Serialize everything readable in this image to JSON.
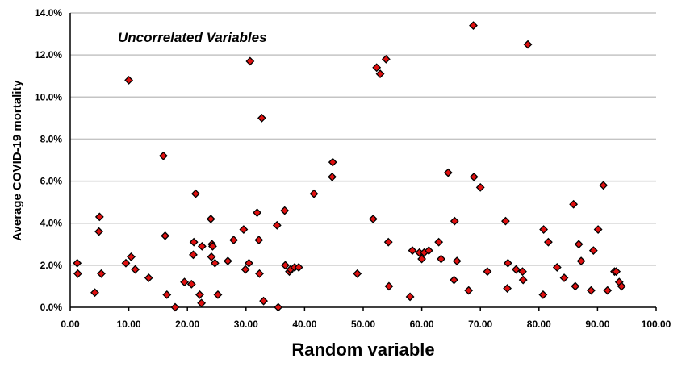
{
  "chart_data": {
    "type": "scatter",
    "title": "",
    "annotation": "Uncorrelated  Variables",
    "xlabel": "Random variable",
    "ylabel": "Average COVID-19 mortality",
    "xlim": [
      0,
      100
    ],
    "ylim": [
      0,
      14
    ],
    "x_ticks": [
      "0.00",
      "10.00",
      "20.00",
      "30.00",
      "40.00",
      "50.00",
      "60.00",
      "70.00",
      "80.00",
      "90.00",
      "100.00"
    ],
    "y_ticks": [
      "0.0%",
      "2.0%",
      "4.0%",
      "6.0%",
      "8.0%",
      "10.0%",
      "12.0%",
      "14.0%"
    ],
    "grid": "horizontal",
    "legend": "none",
    "marker_color": "#e01010",
    "marker_shape": "diamond",
    "y_unit": "percent",
    "points": [
      [
        1.2,
        2.1
      ],
      [
        1.3,
        1.6
      ],
      [
        4.2,
        0.7
      ],
      [
        4.9,
        3.6
      ],
      [
        5.0,
        4.3
      ],
      [
        5.3,
        1.6
      ],
      [
        9.5,
        2.1
      ],
      [
        10.0,
        10.8
      ],
      [
        10.4,
        2.4
      ],
      [
        11.1,
        1.8
      ],
      [
        13.4,
        1.4
      ],
      [
        15.9,
        7.2
      ],
      [
        16.2,
        3.4
      ],
      [
        16.5,
        0.6
      ],
      [
        17.9,
        0.0
      ],
      [
        19.5,
        1.2
      ],
      [
        20.7,
        1.1
      ],
      [
        21.0,
        2.5
      ],
      [
        21.1,
        3.1
      ],
      [
        21.4,
        5.4
      ],
      [
        22.1,
        0.6
      ],
      [
        22.4,
        0.2
      ],
      [
        22.5,
        2.9
      ],
      [
        24.0,
        4.2
      ],
      [
        24.1,
        2.4
      ],
      [
        24.2,
        3.0
      ],
      [
        24.3,
        2.9
      ],
      [
        24.7,
        2.1
      ],
      [
        25.2,
        0.6
      ],
      [
        26.9,
        2.2
      ],
      [
        27.9,
        3.2
      ],
      [
        29.6,
        3.7
      ],
      [
        29.9,
        1.8
      ],
      [
        30.5,
        2.1
      ],
      [
        30.7,
        11.7
      ],
      [
        31.9,
        4.5
      ],
      [
        32.2,
        3.2
      ],
      [
        32.3,
        1.6
      ],
      [
        32.7,
        9.0
      ],
      [
        33.0,
        0.3
      ],
      [
        35.3,
        3.9
      ],
      [
        35.5,
        0.0
      ],
      [
        36.6,
        4.6
      ],
      [
        36.7,
        2.0
      ],
      [
        37.4,
        1.7
      ],
      [
        37.6,
        1.8
      ],
      [
        38.3,
        1.9
      ],
      [
        39.0,
        1.9
      ],
      [
        41.6,
        5.4
      ],
      [
        44.7,
        6.2
      ],
      [
        44.8,
        6.9
      ],
      [
        49.0,
        1.6
      ],
      [
        51.7,
        4.2
      ],
      [
        52.3,
        11.4
      ],
      [
        52.9,
        11.1
      ],
      [
        53.9,
        11.8
      ],
      [
        54.3,
        3.1
      ],
      [
        54.4,
        1.0
      ],
      [
        58.0,
        0.5
      ],
      [
        58.4,
        2.7
      ],
      [
        59.6,
        2.6
      ],
      [
        60.0,
        2.3
      ],
      [
        60.4,
        2.6
      ],
      [
        61.2,
        2.7
      ],
      [
        62.9,
        3.1
      ],
      [
        63.3,
        2.3
      ],
      [
        64.5,
        6.4
      ],
      [
        65.5,
        1.3
      ],
      [
        65.6,
        4.1
      ],
      [
        66.0,
        2.2
      ],
      [
        68.0,
        0.8
      ],
      [
        68.8,
        13.4
      ],
      [
        68.9,
        6.2
      ],
      [
        70.0,
        5.7
      ],
      [
        71.2,
        1.7
      ],
      [
        74.3,
        4.1
      ],
      [
        74.6,
        0.9
      ],
      [
        74.7,
        2.1
      ],
      [
        76.1,
        1.8
      ],
      [
        77.2,
        1.7
      ],
      [
        77.3,
        1.3
      ],
      [
        78.1,
        12.5
      ],
      [
        80.7,
        0.6
      ],
      [
        80.8,
        3.7
      ],
      [
        81.6,
        3.1
      ],
      [
        83.1,
        1.9
      ],
      [
        84.3,
        1.4
      ],
      [
        85.9,
        4.9
      ],
      [
        86.2,
        1.0
      ],
      [
        86.8,
        3.0
      ],
      [
        87.2,
        2.2
      ],
      [
        88.9,
        0.8
      ],
      [
        89.3,
        2.7
      ],
      [
        90.1,
        3.7
      ],
      [
        91.0,
        5.8
      ],
      [
        91.7,
        0.8
      ],
      [
        92.9,
        1.7
      ],
      [
        93.2,
        1.7
      ],
      [
        93.7,
        1.2
      ],
      [
        94.1,
        1.0
      ]
    ]
  }
}
